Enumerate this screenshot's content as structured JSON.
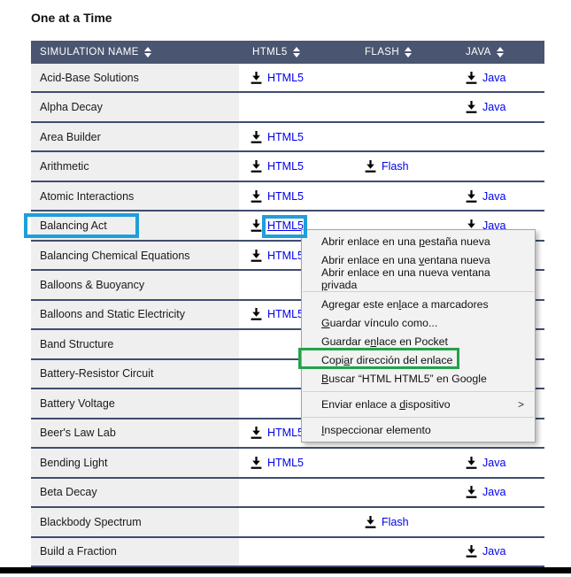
{
  "page": {
    "title": "One at a Time"
  },
  "table": {
    "headers": [
      {
        "label": "SIMULATION NAME"
      },
      {
        "label": "HTML5"
      },
      {
        "label": "FLASH"
      },
      {
        "label": "JAVA"
      }
    ],
    "link_labels": {
      "html5": "HTML5",
      "flash": "Flash",
      "java": "Java"
    },
    "rows": [
      {
        "name": "Acid-Base Solutions",
        "html5": true,
        "flash": false,
        "java": true
      },
      {
        "name": "Alpha Decay",
        "html5": false,
        "flash": false,
        "java": true
      },
      {
        "name": "Area Builder",
        "html5": true,
        "flash": false,
        "java": false
      },
      {
        "name": "Arithmetic",
        "html5": true,
        "flash": true,
        "java": false
      },
      {
        "name": "Atomic Interactions",
        "html5": true,
        "flash": false,
        "java": true
      },
      {
        "name": "Balancing Act",
        "html5": true,
        "flash": false,
        "java": true,
        "hover_link": "html5",
        "highlighted": true
      },
      {
        "name": "Balancing Chemical Equations",
        "html5": true,
        "flash": false,
        "java": false
      },
      {
        "name": "Balloons & Buoyancy",
        "html5": false,
        "flash": false,
        "java": false
      },
      {
        "name": "Balloons and Static Electricity",
        "html5": true,
        "flash": false,
        "java": false
      },
      {
        "name": "Band Structure",
        "html5": false,
        "flash": false,
        "java": false
      },
      {
        "name": "Battery-Resistor Circuit",
        "html5": false,
        "flash": false,
        "java": false
      },
      {
        "name": "Battery Voltage",
        "html5": false,
        "flash": false,
        "java": false
      },
      {
        "name": "Beer's Law Lab",
        "html5": true,
        "flash": false,
        "java": false
      },
      {
        "name": "Bending Light",
        "html5": true,
        "flash": false,
        "java": true
      },
      {
        "name": "Beta Decay",
        "html5": false,
        "flash": false,
        "java": true
      },
      {
        "name": "Blackbody Spectrum",
        "html5": false,
        "flash": true,
        "java": false
      },
      {
        "name": "Build a Fraction",
        "html5": false,
        "flash": false,
        "java": true
      }
    ]
  },
  "context_menu": {
    "submenu_arrow": ">",
    "items": [
      {
        "pre": "Abrir enlace en una ",
        "key": "p",
        "post": "estaña nueva"
      },
      {
        "pre": "Abrir enlace en una ",
        "key": "v",
        "post": "entana nueva"
      },
      {
        "pre": "Abrir enlace en una nueva ventana ",
        "key": "p",
        "post": "rivada",
        "separator_after": true
      },
      {
        "pre": "Agregar este en",
        "key": "l",
        "post": "ace a marcadores"
      },
      {
        "pre": "",
        "key": "G",
        "post": "uardar vínculo como..."
      },
      {
        "pre": "Guardar e",
        "key": "n",
        "post": "lace en Pocket"
      },
      {
        "pre": "Copi",
        "key": "a",
        "post": "r dirección del enlace",
        "annotated": true
      },
      {
        "pre": "",
        "key": "B",
        "post": "uscar “HTML HTML5” en Google",
        "separator_after": true
      },
      {
        "pre": "Enviar enlace a ",
        "key": "d",
        "post": "ispositivo",
        "submenu": true,
        "separator_after": true
      },
      {
        "pre": "",
        "key": "I",
        "post": "nspeccionar elemento"
      }
    ]
  },
  "annotations": {
    "blue_color": "#1f9fd9",
    "green_color": "#22a34a"
  }
}
